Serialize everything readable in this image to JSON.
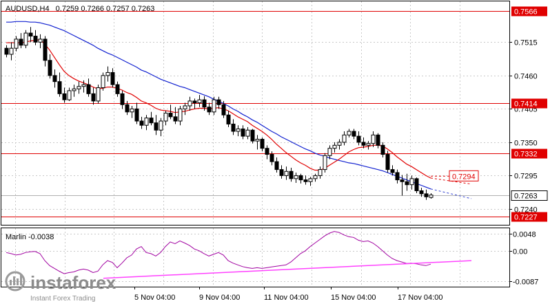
{
  "header": {
    "symbol": "AUDUSD,H4",
    "ohlc": "0.7259 0.7266 0.7257 0.7263"
  },
  "watermark": {
    "brand": "instaforex",
    "tagline": "Instant Forex Trading"
  },
  "colors": {
    "background": "#ffffff",
    "border": "#000000",
    "grid": "#c8c8c8",
    "candle_up": "#ffffff",
    "candle_down": "#000000",
    "ma_fast": "#e00000",
    "ma_slow": "#1020d0",
    "level": "#e00000",
    "oscillator": "#a000a0",
    "oscillator_trend": "#ff40ff",
    "label_bg": "#e00000",
    "price_tag_bg": "#ffffff",
    "forecast": "#3040d0"
  },
  "chart_data": [
    {
      "type": "candlestick",
      "title": "AUDUSD,H4",
      "y_ticks": [
        "0.7515",
        "0.7460",
        "0.7405",
        "0.7350",
        "0.7295",
        "0.7240"
      ],
      "x_ticks": [
        "5 Nov 04:00",
        "9 Nov 04:00",
        "11 Nov 04:00",
        "15 Nov 04:00",
        "17 Nov 04:00"
      ],
      "ylim": [
        0.7215,
        0.758
      ],
      "current_price": "0.7263",
      "levels": [
        {
          "value": 0.7566,
          "label": "0.7566"
        },
        {
          "value": 0.7414,
          "label": "0.7414"
        },
        {
          "value": 0.7332,
          "label": "0.7332"
        },
        {
          "value": 0.7227,
          "label": "0.7227"
        }
      ],
      "target": {
        "value": 0.7294,
        "label": "0.7294"
      },
      "candles": [
        [
          0.7505,
          0.751,
          0.749,
          0.7495
        ],
        [
          0.7495,
          0.7515,
          0.7485,
          0.7505
        ],
        [
          0.7505,
          0.7525,
          0.75,
          0.752
        ],
        [
          0.752,
          0.753,
          0.7505,
          0.751
        ],
        [
          0.751,
          0.7535,
          0.7505,
          0.753
        ],
        [
          0.753,
          0.754,
          0.7515,
          0.7525
        ],
        [
          0.7525,
          0.7535,
          0.751,
          0.7515
        ],
        [
          0.7515,
          0.7528,
          0.7505,
          0.752
        ],
        [
          0.752,
          0.7525,
          0.7475,
          0.7485
        ],
        [
          0.7485,
          0.7495,
          0.7455,
          0.746
        ],
        [
          0.746,
          0.747,
          0.744,
          0.745
        ],
        [
          0.745,
          0.7465,
          0.7425,
          0.743
        ],
        [
          0.743,
          0.744,
          0.7415,
          0.742
        ],
        [
          0.742,
          0.744,
          0.7418,
          0.7435
        ],
        [
          0.7435,
          0.7445,
          0.7425,
          0.7438
        ],
        [
          0.7438,
          0.745,
          0.743,
          0.7442
        ],
        [
          0.7442,
          0.7452,
          0.7432,
          0.7445
        ],
        [
          0.7445,
          0.7455,
          0.7425,
          0.743
        ],
        [
          0.743,
          0.744,
          0.7412,
          0.7418
        ],
        [
          0.7418,
          0.7445,
          0.7414,
          0.744
        ],
        [
          0.744,
          0.7465,
          0.7435,
          0.746
        ],
        [
          0.746,
          0.7475,
          0.745,
          0.7465
        ],
        [
          0.7465,
          0.7472,
          0.744,
          0.7445
        ],
        [
          0.7445,
          0.745,
          0.7425,
          0.743
        ],
        [
          0.743,
          0.7435,
          0.7405,
          0.7412
        ],
        [
          0.7412,
          0.7418,
          0.7395,
          0.74
        ],
        [
          0.74,
          0.741,
          0.739,
          0.7405
        ],
        [
          0.7405,
          0.7415,
          0.738,
          0.7385
        ],
        [
          0.7385,
          0.7392,
          0.7372,
          0.7378
        ],
        [
          0.7378,
          0.7395,
          0.737,
          0.739
        ],
        [
          0.739,
          0.74,
          0.7378,
          0.7382
        ],
        [
          0.7382,
          0.7395,
          0.7362,
          0.737
        ],
        [
          0.737,
          0.739,
          0.736,
          0.7385
        ],
        [
          0.7385,
          0.7402,
          0.7378,
          0.7398
        ],
        [
          0.7398,
          0.7412,
          0.7388,
          0.7392
        ],
        [
          0.7392,
          0.7408,
          0.738,
          0.7385
        ],
        [
          0.7385,
          0.741,
          0.7378,
          0.7405
        ],
        [
          0.7405,
          0.7415,
          0.7395,
          0.741
        ],
        [
          0.741,
          0.7425,
          0.7402,
          0.7418
        ],
        [
          0.7418,
          0.7422,
          0.7405,
          0.7415
        ],
        [
          0.7415,
          0.7428,
          0.7408,
          0.742
        ],
        [
          0.742,
          0.7426,
          0.7402,
          0.7408
        ],
        [
          0.7408,
          0.7415,
          0.7395,
          0.74
        ],
        [
          0.74,
          0.7425,
          0.7395,
          0.742
        ],
        [
          0.742,
          0.7425,
          0.7405,
          0.7412
        ],
        [
          0.7412,
          0.7418,
          0.739,
          0.7395
        ],
        [
          0.7395,
          0.7402,
          0.7375,
          0.738
        ],
        [
          0.738,
          0.7388,
          0.7362,
          0.7368
        ],
        [
          0.7368,
          0.7378,
          0.736,
          0.7372
        ],
        [
          0.7372,
          0.7378,
          0.7355,
          0.736
        ],
        [
          0.736,
          0.7375,
          0.7355,
          0.737
        ],
        [
          0.737,
          0.7372,
          0.7348,
          0.7352
        ],
        [
          0.7352,
          0.7362,
          0.7338,
          0.7355
        ],
        [
          0.7355,
          0.7358,
          0.7335,
          0.734
        ],
        [
          0.734,
          0.7345,
          0.7322,
          0.733
        ],
        [
          0.733,
          0.7335,
          0.7312,
          0.7318
        ],
        [
          0.7318,
          0.7325,
          0.73,
          0.7305
        ],
        [
          0.7305,
          0.7312,
          0.729,
          0.7295
        ],
        [
          0.7295,
          0.731,
          0.7288,
          0.7302
        ],
        [
          0.7302,
          0.7308,
          0.7285,
          0.729
        ],
        [
          0.729,
          0.73,
          0.7283,
          0.7295
        ],
        [
          0.7295,
          0.7298,
          0.7282,
          0.7288
        ],
        [
          0.7288,
          0.7295,
          0.728,
          0.7285
        ],
        [
          0.7285,
          0.7293,
          0.7278,
          0.729
        ],
        [
          0.729,
          0.7298,
          0.7285,
          0.7295
        ],
        [
          0.7295,
          0.731,
          0.729,
          0.7305
        ],
        [
          0.7305,
          0.7332,
          0.73,
          0.7328
        ],
        [
          0.7328,
          0.7345,
          0.7322,
          0.734
        ],
        [
          0.734,
          0.735,
          0.7333,
          0.7345
        ],
        [
          0.7345,
          0.7355,
          0.7338,
          0.735
        ],
        [
          0.735,
          0.7368,
          0.7345,
          0.7362
        ],
        [
          0.7362,
          0.7372,
          0.7358,
          0.7368
        ],
        [
          0.7368,
          0.7372,
          0.7355,
          0.736
        ],
        [
          0.736,
          0.7368,
          0.7345,
          0.735
        ],
        [
          0.735,
          0.7358,
          0.734,
          0.7345
        ],
        [
          0.7345,
          0.7352,
          0.7338,
          0.7348
        ],
        [
          0.7348,
          0.7368,
          0.7342,
          0.7362
        ],
        [
          0.7362,
          0.7365,
          0.734,
          0.7345
        ],
        [
          0.7345,
          0.735,
          0.7325,
          0.733
        ],
        [
          0.733,
          0.7336,
          0.73,
          0.7305
        ],
        [
          0.7305,
          0.7312,
          0.7295,
          0.73
        ],
        [
          0.73,
          0.7305,
          0.7282,
          0.7288
        ],
        [
          0.7288,
          0.7296,
          0.7262,
          0.7285
        ],
        [
          0.7285,
          0.7298,
          0.727,
          0.728
        ],
        [
          0.728,
          0.7295,
          0.7272,
          0.729
        ],
        [
          0.729,
          0.7292,
          0.7266,
          0.727
        ],
        [
          0.727,
          0.7275,
          0.726,
          0.7265
        ],
        [
          0.7265,
          0.7272,
          0.7255,
          0.726
        ],
        [
          0.7259,
          0.7266,
          0.7257,
          0.7263
        ]
      ],
      "ma_fast": [
        0.7514,
        0.7514,
        0.7514,
        0.7514,
        0.7515,
        0.7517,
        0.7518,
        0.7519,
        0.7512,
        0.7502,
        0.749,
        0.7478,
        0.7467,
        0.746,
        0.7455,
        0.7451,
        0.7448,
        0.7445,
        0.7441,
        0.7438,
        0.7439,
        0.7441,
        0.7441,
        0.7439,
        0.7436,
        0.7432,
        0.7429,
        0.7424,
        0.7418,
        0.7415,
        0.7411,
        0.7406,
        0.7403,
        0.7402,
        0.7401,
        0.7399,
        0.74,
        0.7401,
        0.7403,
        0.7405,
        0.7406,
        0.7406,
        0.7405,
        0.7406,
        0.7407,
        0.7405,
        0.7402,
        0.7397,
        0.7392,
        0.7388,
        0.7384,
        0.7378,
        0.7373,
        0.7368,
        0.7362,
        0.7355,
        0.7347,
        0.734,
        0.7333,
        0.7327,
        0.7321,
        0.7316,
        0.7312,
        0.7307,
        0.7304,
        0.7304,
        0.7307,
        0.7312,
        0.7317,
        0.7322,
        0.7328,
        0.7334,
        0.7338,
        0.7341,
        0.7342,
        0.7343,
        0.7345,
        0.7345,
        0.7344,
        0.7339,
        0.7333,
        0.7326,
        0.732,
        0.7314,
        0.731,
        0.7305,
        0.73,
        0.7295,
        0.7291
      ],
      "ma_slow": [
        0.7548,
        0.7548,
        0.7549,
        0.7549,
        0.7549,
        0.7548,
        0.7548,
        0.7547,
        0.7545,
        0.7543,
        0.754,
        0.7537,
        0.7534,
        0.753,
        0.7526,
        0.7522,
        0.7518,
        0.7514,
        0.751,
        0.7505,
        0.7501,
        0.7497,
        0.7494,
        0.749,
        0.7486,
        0.7482,
        0.7478,
        0.7474,
        0.7469,
        0.7466,
        0.7462,
        0.7458,
        0.7454,
        0.7451,
        0.7448,
        0.7445,
        0.7442,
        0.744,
        0.7437,
        0.7434,
        0.7431,
        0.7428,
        0.7425,
        0.7421,
        0.7418,
        0.7414,
        0.741,
        0.7405,
        0.7401,
        0.7396,
        0.7392,
        0.7387,
        0.7383,
        0.7378,
        0.7373,
        0.7368,
        0.7364,
        0.7359,
        0.7355,
        0.7351,
        0.7347,
        0.7343,
        0.7339,
        0.7336,
        0.7332,
        0.7329,
        0.7327,
        0.7324,
        0.7322,
        0.732,
        0.7318,
        0.7316,
        0.7315,
        0.7313,
        0.7311,
        0.7309,
        0.7307,
        0.7305,
        0.7303,
        0.73,
        0.7297,
        0.7294,
        0.7291,
        0.7288,
        0.7285,
        0.7282,
        0.7279,
        0.7276,
        0.7273
      ]
    },
    {
      "type": "line",
      "title": "Marlin -0.0038",
      "y_ticks": [
        "0.0048",
        "0.00",
        "-0.0087"
      ],
      "ylim": [
        -0.01,
        0.006
      ],
      "values": [
        -0.0005,
        -0.0008,
        -0.0012,
        -0.001,
        -0.0005,
        -0.0003,
        -0.0002,
        -0.0008,
        -0.0028,
        -0.0042,
        -0.005,
        -0.0058,
        -0.0065,
        -0.0062,
        -0.006,
        -0.0055,
        -0.0052,
        -0.0055,
        -0.0062,
        -0.0058,
        -0.004,
        -0.0028,
        -0.0033,
        -0.0048,
        -0.0035,
        -0.002,
        -0.0012,
        0.0005,
        0.0012,
        -0.0005,
        -0.0008,
        -0.0015,
        -0.0005,
        0.0012,
        0.0025,
        0.002,
        0.0028,
        0.0022,
        0.0015,
        0.0005,
        0.0,
        -0.0008,
        -0.0015,
        -0.001,
        -0.0005,
        -0.0012,
        -0.0028,
        -0.0035,
        -0.004,
        -0.0045,
        -0.0048,
        -0.005,
        -0.0048,
        -0.005,
        -0.0048,
        -0.0046,
        -0.0044,
        -0.0042,
        -0.004,
        -0.0032,
        -0.002,
        -0.0008,
        0.0,
        0.0012,
        0.0022,
        0.0032,
        0.0042,
        0.005,
        0.0055,
        0.0052,
        0.0045,
        0.004,
        0.0038,
        0.003,
        0.0026,
        0.0028,
        0.0022,
        0.0012,
        0.0,
        -0.0012,
        -0.0022,
        -0.0028,
        -0.0032,
        -0.0036,
        -0.0035,
        -0.0037,
        -0.004,
        -0.0042,
        -0.0038
      ],
      "trendline": [
        [
          -0.0078,
          -0.0028
        ]
      ]
    }
  ]
}
